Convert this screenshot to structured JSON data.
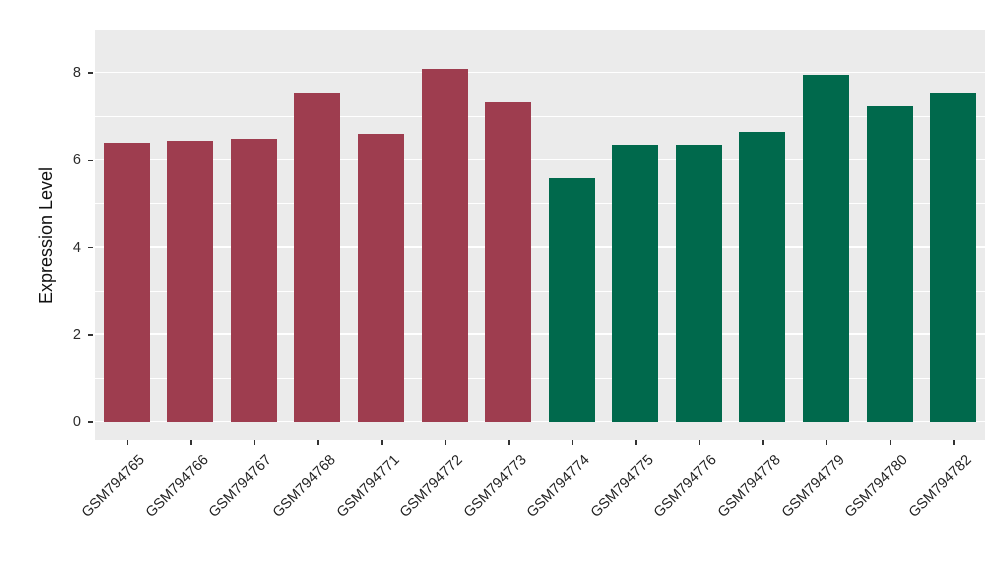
{
  "chart_data": {
    "type": "bar",
    "title": "",
    "xlabel": "",
    "ylabel": "Expression Level",
    "categories": [
      "GSM794765",
      "GSM794766",
      "GSM794767",
      "GSM794768",
      "GSM794771",
      "GSM794772",
      "GSM794773",
      "GSM794774",
      "GSM794775",
      "GSM794776",
      "GSM794778",
      "GSM794779",
      "GSM794780",
      "GSM794782"
    ],
    "values": [
      6.4,
      6.45,
      6.5,
      7.55,
      6.6,
      8.1,
      7.35,
      5.6,
      6.35,
      6.35,
      6.65,
      7.95,
      7.25,
      7.55
    ],
    "bar_colors": [
      "#9E3D4F",
      "#9E3D4F",
      "#9E3D4F",
      "#9E3D4F",
      "#9E3D4F",
      "#9E3D4F",
      "#9E3D4F",
      "#00694C",
      "#00694C",
      "#00694C",
      "#00694C",
      "#00694C",
      "#00694C",
      "#00694C"
    ],
    "group_colors": {
      "left_group": "#9E3D4F",
      "right_group": "#00694C"
    },
    "y_ticks": [
      0,
      2,
      4,
      6,
      8
    ],
    "y_minor_ticks": [
      1,
      3,
      5,
      7
    ],
    "ylim": [
      0,
      8.4
    ],
    "grid": true,
    "legend": "none",
    "panel_background": "#EBEBEB",
    "gridline_color": "#FFFFFF",
    "axis_text_color": "#1F1F1F"
  }
}
